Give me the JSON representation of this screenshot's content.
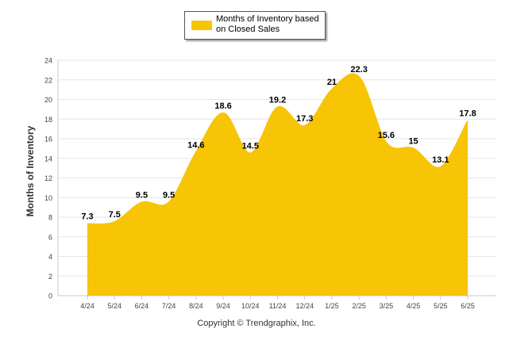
{
  "legend": {
    "label": "Months of Inventory based on Closed Sales"
  },
  "footer": {
    "copyright": "Copyright © Trendgraphix, Inc."
  },
  "chart_data": {
    "type": "area",
    "ylabel": "Months of Inventory",
    "xlabel": "",
    "ylim": [
      0,
      24
    ],
    "yticks": [
      0,
      2,
      4,
      6,
      8,
      10,
      12,
      14,
      16,
      18,
      20,
      22,
      24
    ],
    "grid": true,
    "legend_position": "top-center",
    "categories": [
      "4/24",
      "5/24",
      "6/24",
      "7/24",
      "8/24",
      "9/24",
      "10/24",
      "11/24",
      "12/24",
      "1/25",
      "2/25",
      "3/25",
      "4/25",
      "5/25",
      "6/25"
    ],
    "series": [
      {
        "name": "Months of Inventory based on Closed Sales",
        "values": [
          7.3,
          7.5,
          9.5,
          9.5,
          14.6,
          18.6,
          14.5,
          19.2,
          17.3,
          21,
          22.3,
          15.6,
          15,
          13.1,
          17.8
        ],
        "color": "#F7C406"
      }
    ]
  }
}
